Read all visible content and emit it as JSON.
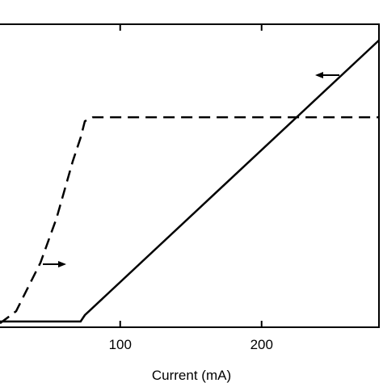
{
  "chart_data": {
    "type": "line",
    "x_label": "Current (mA)",
    "xlim": [
      15,
      283
    ],
    "xticks": [
      100,
      200
    ],
    "ylim": [
      0,
      10
    ],
    "y2lim": [
      0,
      10
    ],
    "series": [
      {
        "color": "#000000",
        "style": "solid",
        "x": [
          15,
          72,
          75,
          283
        ],
        "values": [
          0.19,
          0.19,
          0.4,
          9.47
        ]
      },
      {
        "color": "#000000",
        "style": "dashed",
        "axis": "y2",
        "x": [
          15,
          26.4,
          37.9,
          43.6,
          55,
          66.4,
          72.1,
          75,
          80.7,
          283
        ],
        "values": [
          0.13,
          0.53,
          1.6,
          2.13,
          3.6,
          5.47,
          6.27,
          6.8,
          6.93,
          6.93
        ]
      }
    ]
  }
}
